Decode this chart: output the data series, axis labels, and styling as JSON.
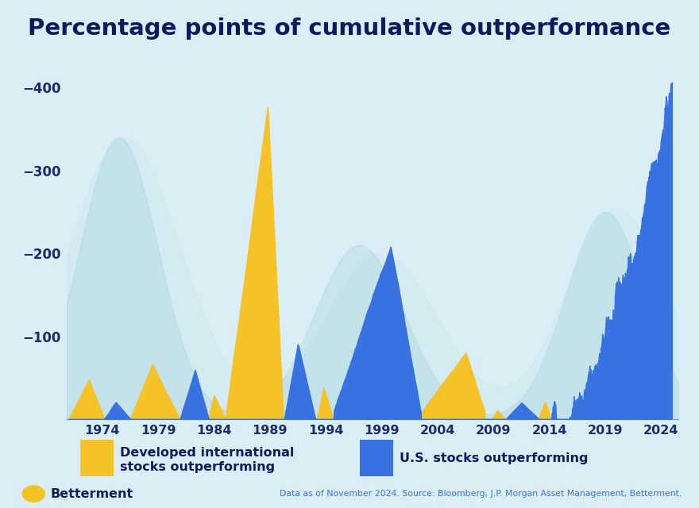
{
  "title": "Percentage points of cumulative outperformance",
  "background_color": "#dceef5",
  "title_color": "#0d1b5e",
  "title_fontsize": 21,
  "tick_color": "#1a2b6e",
  "intl_color": "#f5c227",
  "us_color": "#3872e0",
  "mountain_color_dark": "#9dd0d8",
  "mountain_color_light": "#b8e2ea",
  "ylim": [
    0,
    420
  ],
  "yticks": [
    100,
    200,
    300,
    400
  ],
  "ylabel_prefix": "−",
  "legend_label_intl": "Developed international\nstocks outperforming",
  "legend_label_us": "U.S. stocks outperforming",
  "source_text": "Data as of November 2024. Source: Bloomberg, J.P. Morgan Asset Management, Betterment.",
  "brand_text": "Betterment",
  "brand_color": "#0d1b5e",
  "source_color": "#3872e0",
  "x_start_year": 1970.8,
  "x_end_year": 2025.5,
  "x_ticks": [
    1974,
    1979,
    1984,
    1989,
    1994,
    1999,
    2004,
    2009,
    2014,
    2019,
    2024
  ]
}
